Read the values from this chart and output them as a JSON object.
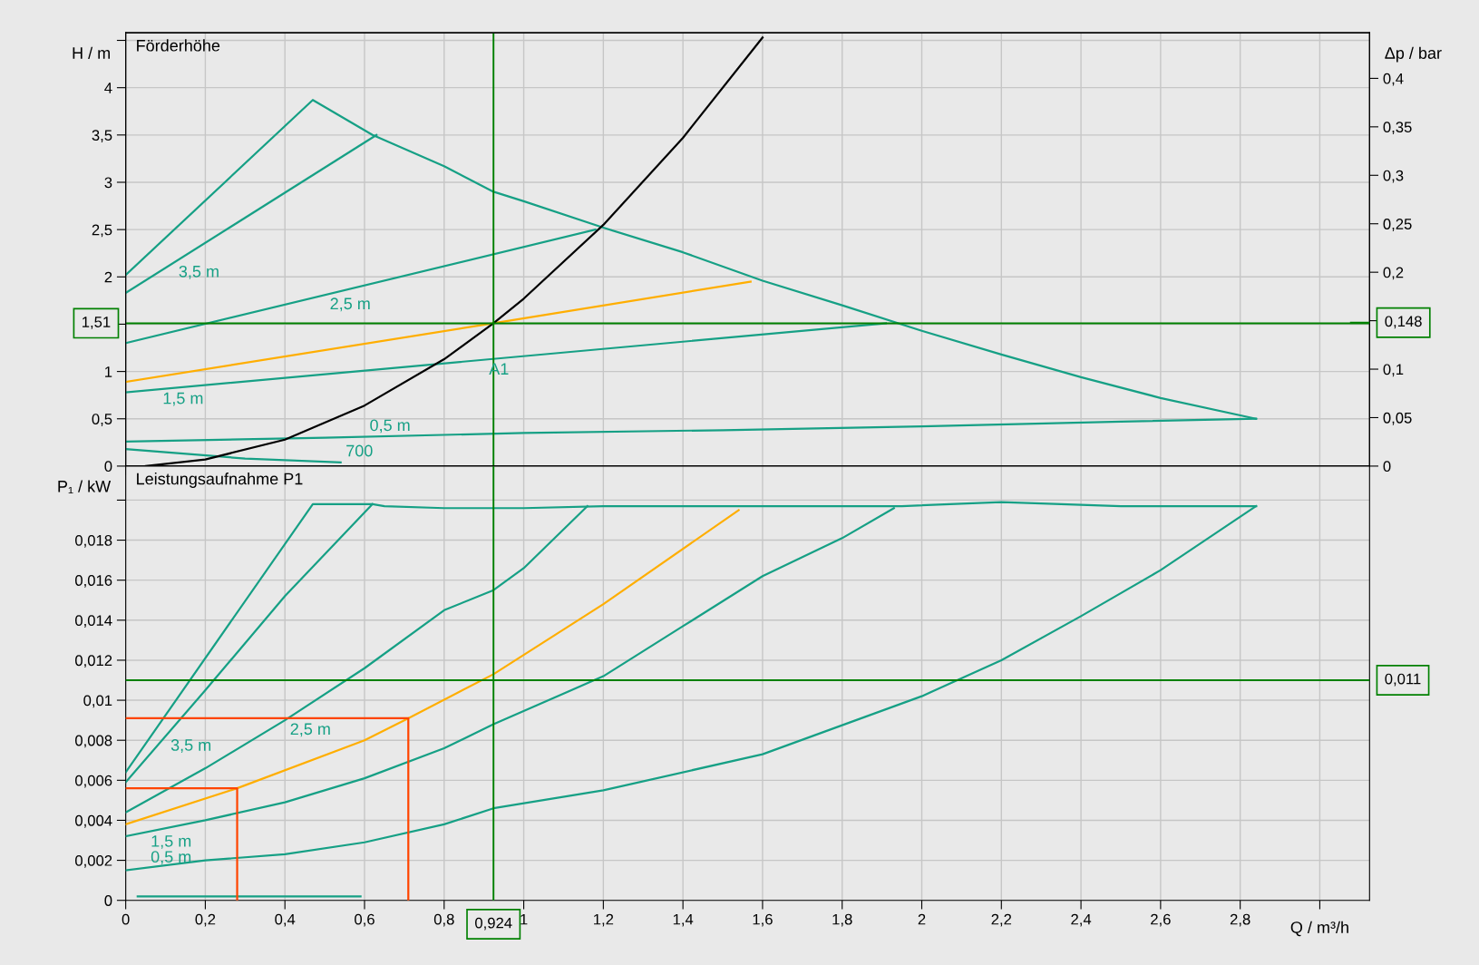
{
  "chart_data": [
    {
      "type": "line",
      "title": "Förderhöhe",
      "ylabel": "H / m",
      "y2label": "Δp / bar",
      "xlim": [
        0,
        3.125
      ],
      "xticks": [
        {
          "value": 0,
          "label": null
        },
        {
          "value": 0.2,
          "label": null
        },
        {
          "value": 0.4,
          "label": null
        },
        {
          "value": 0.6,
          "label": null
        },
        {
          "value": 0.8,
          "label": null
        },
        {
          "value": 1,
          "label": null
        },
        {
          "value": 1.2,
          "label": null
        },
        {
          "value": 1.4,
          "label": null
        },
        {
          "value": 1.6,
          "label": null
        },
        {
          "value": 1.8,
          "label": null
        },
        {
          "value": 2,
          "label": null
        },
        {
          "value": 2.2,
          "label": null
        },
        {
          "value": 2.4,
          "label": null
        },
        {
          "value": 2.6,
          "label": null
        },
        {
          "value": 2.8,
          "label": null
        },
        {
          "value": 3,
          "label": null
        }
      ],
      "ylim": [
        0,
        4.58
      ],
      "yticks": [
        0,
        {
          "value": 0.5,
          "label": "0,5"
        },
        1,
        {
          "value": 1.5,
          "label": null
        },
        2,
        {
          "value": 2.5,
          "label": "2,5"
        },
        3,
        {
          "value": 3.5,
          "label": "3,5"
        },
        4,
        {
          "value": 4.5,
          "label": null
        }
      ],
      "y2lim": [
        0,
        0.447
      ],
      "y2ticks": [
        0,
        {
          "value": 0.05,
          "label": "0,05"
        },
        {
          "value": 0.1,
          "label": "0,1"
        },
        {
          "value": 0.15,
          "label": null
        },
        {
          "value": 0.2,
          "label": "0,2"
        },
        {
          "value": 0.25,
          "label": "0,25"
        },
        {
          "value": 0.3,
          "label": "0,3"
        },
        {
          "value": 0.35,
          "label": "0,35"
        },
        {
          "value": 0.4,
          "label": "0,4"
        }
      ],
      "tick_labels": "y",
      "grid": true,
      "legend": false,
      "series": [
        {
          "color": "#16a085",
          "x": [
            0,
            0.47,
            0.62,
            0.8,
            0.924,
            1.0,
            1.2,
            1.4,
            1.6,
            1.8,
            2.0,
            2.2,
            2.4,
            2.6,
            2.84
          ],
          "values": [
            2.02,
            3.87,
            3.5,
            3.17,
            2.9,
            2.8,
            2.52,
            2.26,
            1.96,
            1.7,
            1.43,
            1.18,
            0.94,
            0.72,
            0.5
          ]
        },
        {
          "color": "#16a085",
          "x": [
            0,
            0.5,
            1.0,
            1.5,
            2.0,
            2.5,
            2.84
          ],
          "values": [
            0.26,
            0.3,
            0.35,
            0.38,
            0.42,
            0.47,
            0.5
          ]
        },
        {
          "color": "#16a085",
          "x": [
            0,
            0.63
          ],
          "values": [
            1.83,
            3.5
          ]
        },
        {
          "color": "#16a085",
          "x": [
            0,
            1.18
          ],
          "values": [
            1.3,
            2.5
          ]
        },
        {
          "color": "#ffae00",
          "x": [
            0,
            0.924,
            1.57
          ],
          "values": [
            0.89,
            1.51,
            1.95
          ]
        },
        {
          "color": "#16a085",
          "x": [
            0,
            1.91
          ],
          "values": [
            0.78,
            1.51
          ]
        },
        {
          "color": "#16a085",
          "x": [
            0,
            0.3,
            0.54
          ],
          "values": [
            0.18,
            0.08,
            0.04
          ]
        },
        {
          "color": "#000000",
          "x": [
            0.05,
            0.2,
            0.4,
            0.6,
            0.8,
            0.924,
            1.0,
            1.2,
            1.4,
            1.6
          ],
          "values": [
            0.0,
            0.07,
            0.28,
            0.64,
            1.13,
            1.51,
            1.77,
            2.55,
            3.47,
            4.53
          ]
        }
      ],
      "ref_lines": [
        {
          "axis": "y",
          "value": 1.51,
          "label": "1,51",
          "color": "#008000"
        },
        {
          "axis": "y2",
          "value": 0.148,
          "label": "0,148",
          "color": "#008000"
        },
        {
          "axis": "x",
          "value": 0.924,
          "label": null,
          "color": "#008000"
        }
      ],
      "annotations": [
        {
          "text": "3,5 m",
          "x": 0.12,
          "y": 2.15
        },
        {
          "text": "2,5 m",
          "x": 0.5,
          "y": 1.81
        },
        {
          "text": "1,5 m",
          "x": 0.08,
          "y": 0.81
        },
        {
          "text": "0,5 m",
          "x": 0.6,
          "y": 0.31
        },
        {
          "text": "700",
          "x": 0.54,
          "y": 0.04
        },
        {
          "text": "A1",
          "x": 0.9,
          "y": 1.12
        }
      ]
    },
    {
      "type": "line",
      "title": "Leistungsaufnahme P1",
      "ylabel": "P₁ / kW",
      "xlabel": "Q / m³/h",
      "xlim": [
        0,
        3.125
      ],
      "xticks": [
        0,
        {
          "value": 0.2,
          "label": "0,2"
        },
        {
          "value": 0.4,
          "label": "0,4"
        },
        {
          "value": 0.6,
          "label": "0,6"
        },
        {
          "value": 0.8,
          "label": "0,8"
        },
        1,
        {
          "value": 1.2,
          "label": "1,2"
        },
        {
          "value": 1.4,
          "label": "1,4"
        },
        {
          "value": 1.6,
          "label": "1,6"
        },
        {
          "value": 1.8,
          "label": "1,8"
        },
        2,
        {
          "value": 2.2,
          "label": "2,2"
        },
        {
          "value": 2.4,
          "label": "2,4"
        },
        {
          "value": 2.6,
          "label": "2,6"
        },
        {
          "value": 2.8,
          "label": "2,8"
        },
        {
          "value": 3,
          "label": null
        }
      ],
      "ylim": [
        0,
        0.0217
      ],
      "yticks": [
        0,
        {
          "value": 0.002,
          "label": "0,002"
        },
        {
          "value": 0.004,
          "label": "0,004"
        },
        {
          "value": 0.006,
          "label": "0,006"
        },
        {
          "value": 0.008,
          "label": "0,008"
        },
        {
          "value": 0.01,
          "label": "0,01"
        },
        {
          "value": 0.012,
          "label": "0,012"
        },
        {
          "value": 0.014,
          "label": "0,014"
        },
        {
          "value": 0.016,
          "label": "0,016"
        },
        {
          "value": 0.018,
          "label": "0,018"
        },
        {
          "value": 0.02,
          "label": null
        }
      ],
      "grid": true,
      "legend": false,
      "series": [
        {
          "color": "#16a085",
          "x": [
            0,
            0.47,
            0.62,
            0.65,
            0.8,
            1.0,
            1.2,
            1.6,
            1.95,
            2.2,
            2.5,
            2.84
          ],
          "values": [
            0.0064,
            0.0198,
            0.0198,
            0.0197,
            0.0196,
            0.0196,
            0.0197,
            0.0197,
            0.0197,
            0.0199,
            0.0197,
            0.0197
          ]
        },
        {
          "color": "#16a085",
          "x": [
            0,
            0.2,
            0.4,
            0.62
          ],
          "values": [
            0.0059,
            0.0105,
            0.0152,
            0.0198
          ]
        },
        {
          "color": "#16a085",
          "x": [
            0,
            0.2,
            0.4,
            0.6,
            0.8,
            0.924,
            1.0,
            1.16
          ],
          "values": [
            0.0044,
            0.0066,
            0.009,
            0.0116,
            0.0145,
            0.0155,
            0.0166,
            0.0197
          ]
        },
        {
          "color": "#ffae00",
          "x": [
            0,
            0.28,
            0.6,
            0.71,
            0.924,
            1.2,
            1.54
          ],
          "values": [
            0.0038,
            0.0056,
            0.008,
            0.0091,
            0.0113,
            0.0148,
            0.0195
          ]
        },
        {
          "color": "#16a085",
          "x": [
            0,
            0.2,
            0.4,
            0.6,
            0.8,
            0.924,
            1.2,
            1.4,
            1.6,
            1.8,
            1.93
          ],
          "values": [
            0.0032,
            0.004,
            0.0049,
            0.0061,
            0.0076,
            0.0088,
            0.0112,
            0.0137,
            0.0162,
            0.0181,
            0.0196
          ]
        },
        {
          "color": "#16a085",
          "x": [
            0,
            0.2,
            0.4,
            0.6,
            0.8,
            0.924,
            1.2,
            1.6,
            2.0,
            2.2,
            2.4,
            2.6,
            2.84
          ],
          "values": [
            0.0015,
            0.002,
            0.0023,
            0.0029,
            0.0038,
            0.0046,
            0.0055,
            0.0073,
            0.0102,
            0.012,
            0.0142,
            0.0165,
            0.0197
          ]
        },
        {
          "color": "#16a085",
          "x": [
            0.03,
            0.59
          ],
          "values": [
            0.0002,
            0.0002
          ]
        },
        {
          "color": "#ff4500",
          "x": [
            0,
            0.28,
            0.28
          ],
          "values": [
            0.0056,
            0.0056,
            0
          ]
        },
        {
          "color": "#ff4500",
          "x": [
            0,
            0.71,
            0.71
          ],
          "values": [
            0.0091,
            0.0091,
            0
          ]
        }
      ],
      "ref_lines": [
        {
          "axis": "y",
          "value": 0.011,
          "label": "0,011",
          "color": "#008000"
        },
        {
          "axis": "x",
          "value": 0.924,
          "label": "0,924",
          "color": "#008000"
        }
      ],
      "annotations": [
        {
          "text": "3,5 m",
          "x": 0.1,
          "y": 0.0082
        },
        {
          "text": "2,5 m",
          "x": 0.4,
          "y": 0.009
        },
        {
          "text": "1,5 m",
          "x": 0.05,
          "y": 0.0034
        },
        {
          "text": "0,5 m",
          "x": 0.05,
          "y": 0.0016
        }
      ]
    }
  ]
}
